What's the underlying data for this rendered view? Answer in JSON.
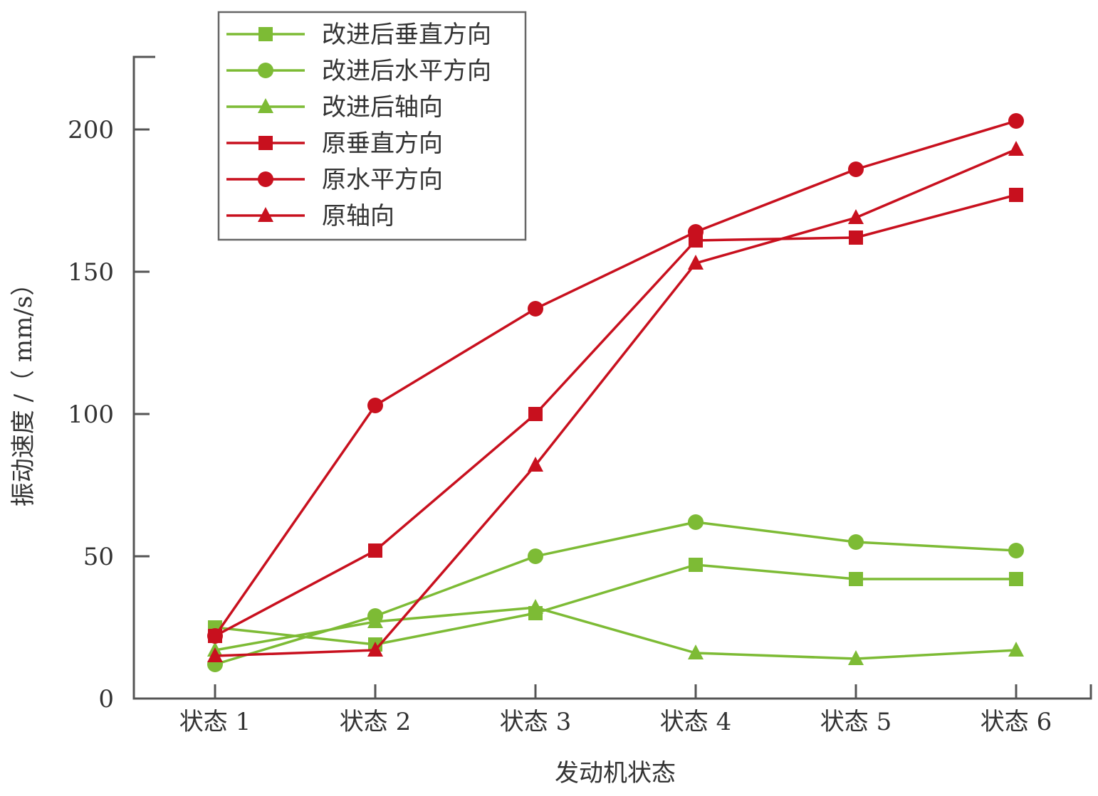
{
  "chart_data": {
    "type": "line",
    "title": "",
    "xlabel": "发动机状态",
    "ylabel": "振动速度 /（ mm/s）",
    "categories": [
      "状态 1",
      "状态 2",
      "状态 3",
      "状态 4",
      "状态 5",
      "状态 6"
    ],
    "yticks": [
      "0",
      "50",
      "100",
      "150",
      "200"
    ],
    "ytick_values": [
      0,
      50,
      100,
      150,
      200
    ],
    "ylim": [
      0,
      226
    ],
    "grid": false,
    "legend_position": "top-left",
    "series": [
      {
        "name": "改进后垂直方向",
        "marker": "square",
        "color": "#7dbb35",
        "values": [
          25,
          19,
          30,
          47,
          42,
          42
        ]
      },
      {
        "name": "改进后水平方向",
        "marker": "circle",
        "color": "#7dbb35",
        "values": [
          12,
          29,
          50,
          62,
          55,
          52
        ]
      },
      {
        "name": "改进后轴向",
        "marker": "triangle",
        "color": "#7dbb35",
        "values": [
          17,
          27,
          32,
          16,
          14,
          17
        ]
      },
      {
        "name": "原垂直方向",
        "marker": "square",
        "color": "#c8101e",
        "values": [
          22,
          52,
          100,
          161,
          162,
          177
        ]
      },
      {
        "name": "原水平方向",
        "marker": "circle",
        "color": "#c8101e",
        "values": [
          22,
          103,
          137,
          164,
          186,
          203
        ]
      },
      {
        "name": "原轴向",
        "marker": "triangle",
        "color": "#c8101e",
        "values": [
          15,
          17,
          82,
          153,
          169,
          193
        ]
      }
    ]
  }
}
